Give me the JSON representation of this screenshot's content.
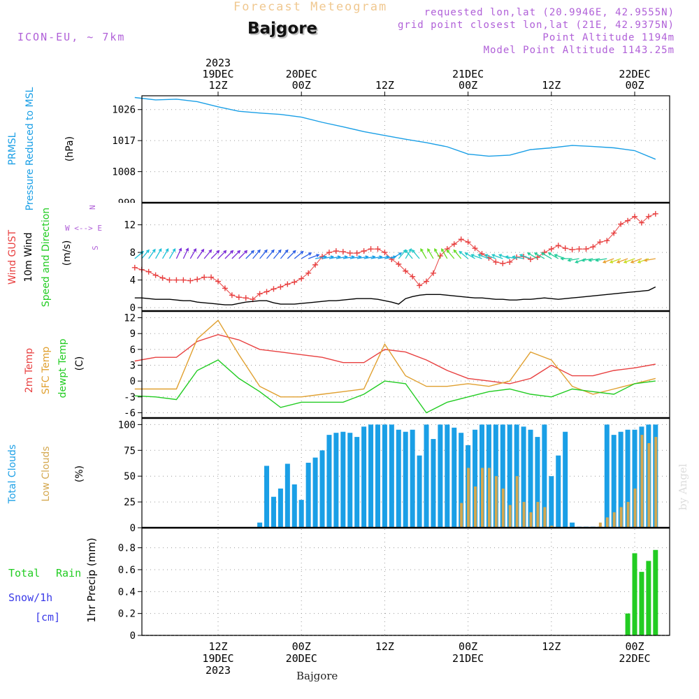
{
  "header": {
    "top_title": "Forecast Meteogram",
    "location": "Bajgore",
    "model": "ICON-EU, ~ 7km",
    "requested": "requested lon,lat (20.9946E, 42.9555N)",
    "grid": "grid point closest lon,lat (21E, 42.9375N)",
    "point_alt": "Point Altitude 1194m",
    "model_alt": "Model Point Altitude 1143.25m",
    "bottom_location": "Bajgore",
    "credit": "by Angel"
  },
  "colors": {
    "pressure": "#1a9fe6",
    "gust": "#e84040",
    "wind10m": "#000000",
    "temp2m": "#e84040",
    "sfc": "#e0a030",
    "dewpt": "#22cc22",
    "total_clouds": "#1a9fe6",
    "low_clouds": "#d4a850",
    "rain": "#22cc22",
    "snow": "#3a3ae8",
    "header_faint": "#f0c890",
    "header_purple": "#b060d8"
  },
  "chart_data": [
    {
      "type": "line",
      "panel": "pressure",
      "label_lines": [
        "PRMSL",
        "Pressure Reduced to MSL"
      ],
      "units": "(hPa)",
      "ylim": [
        999,
        1030
      ],
      "yticks": [
        1008,
        1017,
        1026
      ],
      "bottom_clipped_tick": "999",
      "time_hours": [
        0,
        3,
        6,
        9,
        12,
        15,
        18,
        21,
        24,
        27,
        30,
        33,
        36,
        39,
        42,
        45,
        48,
        51,
        54,
        57,
        60,
        63,
        66,
        69,
        72,
        75
      ],
      "values": [
        1029.5,
        1028.8,
        1029.0,
        1028.3,
        1026.8,
        1025.5,
        1025.0,
        1024.6,
        1023.8,
        1022.3,
        1021.0,
        1019.6,
        1018.5,
        1017.4,
        1016.4,
        1015.2,
        1013.1,
        1012.5,
        1012.8,
        1014.4,
        1014.9,
        1015.6,
        1015.3,
        1014.9,
        1014.1,
        1011.6
      ]
    },
    {
      "type": "line",
      "panel": "wind",
      "label_lines": [
        "Wind GUST",
        "10m Wind",
        "Speed and Direction"
      ],
      "units": "(m/s)",
      "ylim": [
        -0.5,
        15
      ],
      "yticks": [
        0,
        4,
        8,
        12
      ],
      "compass": [
        "N",
        "W <--> E",
        "S"
      ],
      "time_hours": [
        0,
        1,
        2,
        3,
        4,
        5,
        6,
        7,
        8,
        9,
        10,
        11,
        12,
        13,
        14,
        15,
        16,
        17,
        18,
        19,
        20,
        21,
        22,
        23,
        24,
        25,
        26,
        27,
        28,
        29,
        30,
        31,
        32,
        33,
        34,
        35,
        36,
        37,
        38,
        39,
        40,
        41,
        42,
        43,
        44,
        45,
        46,
        47,
        48,
        49,
        50,
        51,
        52,
        53,
        54,
        55,
        56,
        57,
        58,
        59,
        60,
        61,
        62,
        63,
        64,
        65,
        66,
        67,
        68,
        69,
        70,
        71,
        72,
        73,
        74,
        75
      ],
      "series": [
        {
          "name": "Wind GUST",
          "values": [
            5.8,
            5.5,
            5.2,
            4.7,
            4.3,
            4.0,
            4.0,
            4.0,
            3.9,
            4.1,
            4.4,
            4.4,
            3.8,
            2.8,
            1.8,
            1.5,
            1.4,
            1.2,
            2.0,
            2.3,
            2.7,
            3.0,
            3.4,
            3.7,
            4.2,
            5.0,
            6.2,
            7.4,
            8.0,
            8.2,
            8.1,
            7.9,
            7.9,
            8.2,
            8.5,
            8.5,
            8.0,
            7.0,
            6.3,
            5.3,
            4.5,
            3.2,
            3.8,
            5.0,
            7.5,
            8.5,
            9.2,
            9.9,
            9.5,
            8.6,
            7.8,
            7.2,
            6.6,
            6.4,
            6.6,
            7.3,
            7.4,
            7.0,
            7.3,
            8.0,
            8.5,
            9.0,
            8.6,
            8.4,
            8.5,
            8.5,
            8.8,
            9.5,
            9.7,
            10.8,
            12.1,
            12.6,
            13.2,
            12.3,
            13.2,
            13.6
          ]
        },
        {
          "name": "10m Wind",
          "values": [
            1.4,
            1.4,
            1.3,
            1.2,
            1.2,
            1.2,
            1.1,
            1.0,
            1.0,
            0.8,
            0.7,
            0.6,
            0.5,
            0.4,
            0.4,
            0.6,
            0.8,
            0.9,
            1.0,
            1.0,
            0.7,
            0.5,
            0.5,
            0.5,
            0.6,
            0.7,
            0.8,
            0.9,
            1.0,
            1.0,
            1.1,
            1.2,
            1.3,
            1.3,
            1.3,
            1.2,
            1.0,
            0.8,
            0.5,
            1.3,
            1.6,
            1.8,
            1.9,
            1.9,
            1.9,
            1.8,
            1.7,
            1.6,
            1.5,
            1.4,
            1.4,
            1.3,
            1.2,
            1.2,
            1.1,
            1.1,
            1.2,
            1.2,
            1.3,
            1.4,
            1.3,
            1.2,
            1.3,
            1.4,
            1.5,
            1.6,
            1.7,
            1.8,
            1.9,
            2.0,
            2.1,
            2.2,
            2.3,
            2.4,
            2.5,
            3.0
          ]
        }
      ],
      "arrows": {
        "time_hours": [
          0,
          1,
          2,
          3,
          4,
          5,
          6,
          7,
          8,
          9,
          10,
          11,
          12,
          13,
          14,
          15,
          16,
          17,
          18,
          19,
          20,
          21,
          22,
          23,
          24,
          25,
          26,
          27,
          28,
          29,
          30,
          31,
          32,
          33,
          34,
          35,
          36,
          37,
          38,
          39,
          40,
          41,
          42,
          43,
          44,
          45,
          46,
          47,
          48,
          49,
          50,
          51,
          52,
          53,
          54,
          55,
          56,
          57,
          58,
          59,
          60,
          61,
          62,
          63,
          64,
          65,
          66,
          67,
          68,
          69,
          70,
          71,
          72,
          73,
          74,
          75
        ],
        "dir_deg": [
          50,
          40,
          35,
          30,
          30,
          30,
          25,
          25,
          30,
          35,
          40,
          45,
          45,
          45,
          45,
          45,
          45,
          40,
          40,
          40,
          40,
          40,
          45,
          50,
          60,
          70,
          80,
          80,
          80,
          80,
          80,
          80,
          80,
          80,
          80,
          80,
          80,
          60,
          40,
          30,
          320,
          320,
          330,
          330,
          330,
          330,
          320,
          320,
          310,
          300,
          290,
          290,
          290,
          290,
          290,
          280,
          280,
          290,
          300,
          300,
          300,
          300,
          290,
          270,
          260,
          250,
          260,
          260,
          260,
          250,
          250,
          250,
          250,
          250,
          250,
          260
        ]
      }
    },
    {
      "type": "line",
      "panel": "temperature",
      "label_lines": [
        "2m Temp",
        "SFC Temp",
        "dewpt Temp"
      ],
      "units": "(C)",
      "ylim": [
        -7,
        13
      ],
      "yticks": [
        -6,
        -3,
        0,
        3,
        6,
        9,
        12
      ],
      "time_hours": [
        0,
        3,
        6,
        9,
        12,
        15,
        18,
        21,
        24,
        27,
        30,
        33,
        36,
        39,
        42,
        45,
        48,
        51,
        54,
        57,
        60,
        63,
        66,
        69,
        72,
        75
      ],
      "series": [
        {
          "name": "2m Temp",
          "values": [
            3.8,
            4.5,
            4.5,
            7.5,
            8.8,
            7.8,
            6.0,
            5.5,
            5.0,
            4.5,
            3.5,
            3.5,
            6.0,
            5.5,
            4.0,
            2.0,
            0.5,
            0.0,
            -0.5,
            0.5,
            3.0,
            1.0,
            1.0,
            2.0,
            2.5,
            3.2
          ]
        },
        {
          "name": "SFC Temp",
          "values": [
            -1.5,
            -1.5,
            -1.5,
            8.0,
            11.5,
            5.0,
            -1.0,
            -3.0,
            -3.0,
            -2.5,
            -2.0,
            -1.5,
            7.0,
            1.0,
            -1.0,
            -1.0,
            -0.5,
            -1.0,
            0.0,
            5.5,
            4.0,
            -1.0,
            -2.5,
            -1.5,
            -0.5,
            0.5
          ]
        },
        {
          "name": "dewpt Temp",
          "values": [
            -2.8,
            -3.0,
            -3.5,
            2.0,
            4.0,
            0.5,
            -2.0,
            -5.0,
            -4.0,
            -4.0,
            -4.0,
            -2.5,
            0.0,
            -0.5,
            -6.0,
            -4.0,
            -3.0,
            -2.0,
            -1.5,
            -2.5,
            -3.0,
            -1.5,
            -2.0,
            -2.5,
            -0.5,
            0.0
          ]
        }
      ]
    },
    {
      "type": "bar",
      "panel": "clouds",
      "label_lines": [
        "Total Clouds",
        "Low Clouds"
      ],
      "units": "(%)",
      "ylim": [
        0,
        105
      ],
      "yticks": [
        0,
        25,
        50,
        75,
        100
      ],
      "time_hours": [
        0,
        1,
        2,
        3,
        4,
        5,
        6,
        7,
        8,
        9,
        10,
        11,
        12,
        13,
        14,
        15,
        16,
        17,
        18,
        19,
        20,
        21,
        22,
        23,
        24,
        25,
        26,
        27,
        28,
        29,
        30,
        31,
        32,
        33,
        34,
        35,
        36,
        37,
        38,
        39,
        40,
        41,
        42,
        43,
        44,
        45,
        46,
        47,
        48,
        49,
        50,
        51,
        52,
        53,
        54,
        55,
        56,
        57,
        58,
        59,
        60,
        61,
        62,
        63,
        64,
        65,
        66,
        67,
        68,
        69,
        70,
        71,
        72,
        73,
        74,
        75
      ],
      "series": [
        {
          "name": "Total Clouds",
          "values": [
            0,
            0,
            0,
            0,
            0,
            0,
            0,
            0,
            0,
            0,
            0,
            0,
            0,
            0,
            0,
            0,
            0,
            0,
            5,
            60,
            30,
            38,
            62,
            42,
            27,
            63,
            68,
            75,
            90,
            92,
            93,
            92,
            88,
            98,
            100,
            100,
            100,
            100,
            95,
            93,
            95,
            70,
            100,
            86,
            100,
            100,
            97,
            92,
            80,
            95,
            100,
            100,
            100,
            100,
            100,
            100,
            98,
            95,
            88,
            100,
            50,
            70,
            93,
            5,
            1,
            1,
            1,
            1,
            100,
            90,
            93,
            95,
            95,
            98,
            100,
            100
          ]
        },
        {
          "name": "Low Clouds",
          "values": [
            0,
            0,
            0,
            0,
            0,
            0,
            0,
            0,
            0,
            0,
            0,
            0,
            0,
            0,
            0,
            0,
            0,
            0,
            0,
            0,
            0,
            0,
            0,
            0,
            0,
            0,
            0,
            0,
            0,
            0,
            0,
            0,
            0,
            0,
            0,
            0,
            0,
            0,
            0,
            0,
            0,
            0,
            0,
            0,
            0,
            0,
            0,
            24,
            58,
            40,
            58,
            58,
            50,
            38,
            22,
            50,
            25,
            15,
            25,
            20,
            2,
            0,
            0,
            0,
            0,
            0,
            0,
            5,
            10,
            15,
            20,
            25,
            38,
            90,
            82,
            88
          ]
        }
      ]
    },
    {
      "type": "bar",
      "panel": "precipitation",
      "label_lines": [
        "Total",
        "Rain",
        "Snow/1h",
        "[cm]"
      ],
      "units": "1hr Precip (mm)",
      "ylim": [
        0,
        0.97
      ],
      "yticks": [
        0,
        0.2,
        0.4,
        0.6,
        0.8
      ],
      "ytick_labels": [
        "0",
        "0.2",
        "0.4",
        "0.6",
        "0.8"
      ],
      "time_hours": [
        71,
        72,
        73,
        74,
        75
      ],
      "values": [
        0.2,
        0.75,
        0.58,
        0.68,
        0.78
      ]
    }
  ],
  "time_axis": {
    "top_labels": [
      {
        "hour": 12,
        "lines": [
          "2023",
          "19DEC",
          "12Z"
        ]
      },
      {
        "hour": 24,
        "lines": [
          "20DEC",
          "00Z"
        ]
      },
      {
        "hour": 36,
        "lines": [
          "12Z"
        ]
      },
      {
        "hour": 48,
        "lines": [
          "21DEC",
          "00Z"
        ]
      },
      {
        "hour": 60,
        "lines": [
          "12Z"
        ]
      },
      {
        "hour": 72,
        "lines": [
          "22DEC",
          "00Z"
        ]
      }
    ],
    "bottom_labels": [
      {
        "hour": 12,
        "lines": [
          "12Z",
          "19DEC",
          "2023"
        ]
      },
      {
        "hour": 24,
        "lines": [
          "00Z",
          "20DEC"
        ]
      },
      {
        "hour": 36,
        "lines": [
          "12Z"
        ]
      },
      {
        "hour": 48,
        "lines": [
          "00Z",
          "21DEC"
        ]
      },
      {
        "hour": 60,
        "lines": [
          "12Z"
        ]
      },
      {
        "hour": 72,
        "lines": [
          "00Z",
          "22DEC"
        ]
      }
    ]
  }
}
